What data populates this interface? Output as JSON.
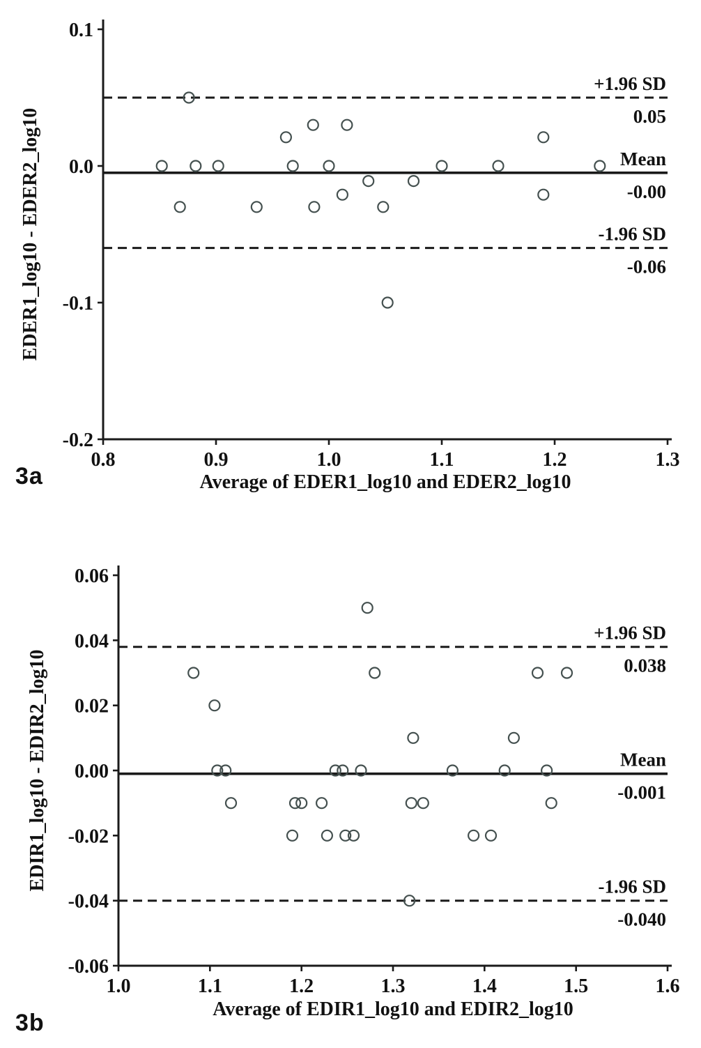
{
  "figure_labels": [
    "3a",
    "3b"
  ],
  "colors": {
    "axis": "#1a1a1a",
    "line": "#1a1a1a",
    "marker": "#44504f",
    "text": "#111111",
    "background": "#ffffff"
  },
  "chart_data": [
    {
      "type": "scatter",
      "title": "",
      "xlabel": "Average of EDER1_log10 and EDER2_log10",
      "ylabel": "EDER1_log10 - EDER2_log10",
      "xlim": [
        0.8,
        1.3
      ],
      "ylim": [
        -0.2,
        0.1
      ],
      "grid": false,
      "legend": "none",
      "marker": "open-circle",
      "xticks": [
        {
          "v": 0.8,
          "label": "0.8"
        },
        {
          "v": 0.9,
          "label": "0.9"
        },
        {
          "v": 1.0,
          "label": "1.0"
        },
        {
          "v": 1.1,
          "label": "1.1"
        },
        {
          "v": 1.2,
          "label": "1.2"
        },
        {
          "v": 1.3,
          "label": "1.3"
        }
      ],
      "yticks": [
        {
          "v": 0.1,
          "label": "0.1"
        },
        {
          "v": 0.0,
          "label": "0.0"
        },
        {
          "v": -0.1,
          "label": "-0.1"
        },
        {
          "v": -0.2,
          "label": "-0.2"
        }
      ],
      "reference_lines": [
        {
          "name": "+1.96 SD",
          "value": 0.05,
          "value_label": "0.05",
          "style": "dashed"
        },
        {
          "name": "Mean",
          "value": -0.005,
          "value_label": "-0.00",
          "style": "solid"
        },
        {
          "name": "-1.96 SD",
          "value": -0.06,
          "value_label": "-0.06",
          "style": "dashed"
        }
      ],
      "points": [
        [
          0.852,
          0.0
        ],
        [
          0.868,
          -0.03
        ],
        [
          0.876,
          0.05
        ],
        [
          0.882,
          0.0
        ],
        [
          0.902,
          0.0
        ],
        [
          0.936,
          -0.03
        ],
        [
          0.962,
          0.021
        ],
        [
          0.968,
          0.0
        ],
        [
          0.986,
          0.03
        ],
        [
          0.987,
          -0.03
        ],
        [
          1.0,
          0.0
        ],
        [
          1.012,
          -0.021
        ],
        [
          1.016,
          0.03
        ],
        [
          1.035,
          -0.011
        ],
        [
          1.048,
          -0.03
        ],
        [
          1.052,
          -0.1
        ],
        [
          1.075,
          -0.011
        ],
        [
          1.1,
          0.0
        ],
        [
          1.15,
          0.0
        ],
        [
          1.19,
          0.021
        ],
        [
          1.19,
          -0.021
        ],
        [
          1.24,
          0.0
        ]
      ]
    },
    {
      "type": "scatter",
      "title": "",
      "xlabel": "Average of EDIR1_log10 and EDIR2_log10",
      "ylabel": "EDIR1_log10 - EDIR2_log10",
      "xlim": [
        1.0,
        1.6
      ],
      "ylim": [
        -0.06,
        0.06
      ],
      "grid": false,
      "legend": "none",
      "marker": "open-circle",
      "xticks": [
        {
          "v": 1.0,
          "label": "1.0"
        },
        {
          "v": 1.1,
          "label": "1.1"
        },
        {
          "v": 1.2,
          "label": "1.2"
        },
        {
          "v": 1.3,
          "label": "1.3"
        },
        {
          "v": 1.4,
          "label": "1.4"
        },
        {
          "v": 1.5,
          "label": "1.5"
        },
        {
          "v": 1.6,
          "label": "1.6"
        }
      ],
      "yticks": [
        {
          "v": 0.06,
          "label": "0.06"
        },
        {
          "v": 0.04,
          "label": "0.04"
        },
        {
          "v": 0.02,
          "label": "0.02"
        },
        {
          "v": 0.0,
          "label": "0.00"
        },
        {
          "v": -0.02,
          "label": "-0.02"
        },
        {
          "v": -0.04,
          "label": "-0.04"
        },
        {
          "v": -0.06,
          "label": "-0.06"
        }
      ],
      "reference_lines": [
        {
          "name": "+1.96 SD",
          "value": 0.038,
          "value_label": "0.038",
          "style": "dashed"
        },
        {
          "name": "Mean",
          "value": -0.001,
          "value_label": "-0.001",
          "style": "solid"
        },
        {
          "name": "-1.96 SD",
          "value": -0.04,
          "value_label": "-0.040",
          "style": "dashed"
        }
      ],
      "points": [
        [
          1.082,
          0.03
        ],
        [
          1.105,
          0.02
        ],
        [
          1.108,
          0.0
        ],
        [
          1.117,
          0.0
        ],
        [
          1.123,
          -0.01
        ],
        [
          1.19,
          -0.02
        ],
        [
          1.193,
          -0.01
        ],
        [
          1.2,
          -0.01
        ],
        [
          1.222,
          -0.01
        ],
        [
          1.228,
          -0.02
        ],
        [
          1.237,
          0.0
        ],
        [
          1.245,
          0.0
        ],
        [
          1.248,
          -0.02
        ],
        [
          1.257,
          -0.02
        ],
        [
          1.265,
          0.0
        ],
        [
          1.272,
          0.05
        ],
        [
          1.28,
          0.03
        ],
        [
          1.318,
          -0.04
        ],
        [
          1.32,
          -0.01
        ],
        [
          1.322,
          0.01
        ],
        [
          1.333,
          -0.01
        ],
        [
          1.365,
          0.0
        ],
        [
          1.388,
          -0.02
        ],
        [
          1.407,
          -0.02
        ],
        [
          1.422,
          0.0
        ],
        [
          1.432,
          0.01
        ],
        [
          1.458,
          0.03
        ],
        [
          1.468,
          0.0
        ],
        [
          1.473,
          -0.01
        ],
        [
          1.49,
          0.03
        ]
      ]
    }
  ]
}
